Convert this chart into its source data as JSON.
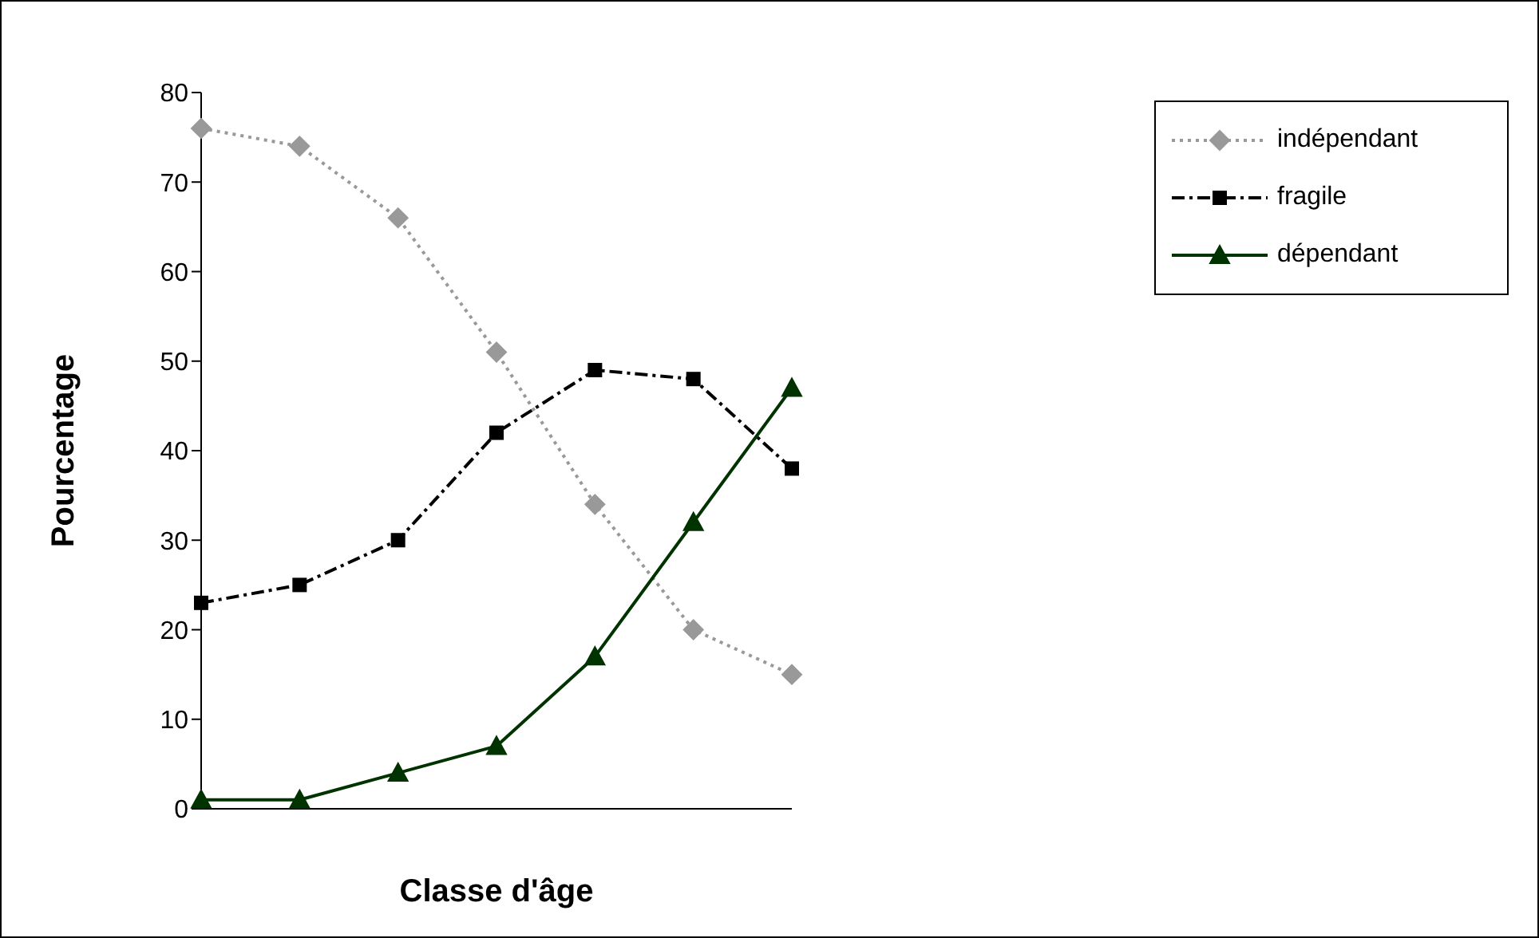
{
  "chart_data": {
    "type": "line",
    "xlabel": "Classe d'âge",
    "ylabel": "Pourcentage",
    "categories": [
      null,
      null,
      null,
      null,
      null,
      null,
      null
    ],
    "series": [
      {
        "name": "indépendant",
        "color": "#999999",
        "marker": "diamond",
        "line_style": "dotted",
        "values": [
          76,
          74,
          66,
          51,
          34,
          20,
          15
        ]
      },
      {
        "name": "fragile",
        "color": "#000000",
        "marker": "square",
        "line_style": "dashdot",
        "values": [
          23,
          25,
          30,
          42,
          49,
          48,
          38
        ]
      },
      {
        "name": "dépendant",
        "color": "#003300",
        "marker": "triangle",
        "line_style": "solid",
        "values": [
          1,
          1,
          4,
          7,
          17,
          32,
          47
        ]
      }
    ],
    "ylim": [
      0,
      80
    ],
    "yticks": [
      0,
      10,
      20,
      30,
      40,
      50,
      60,
      70,
      80
    ],
    "grid": false,
    "legend": "right"
  }
}
